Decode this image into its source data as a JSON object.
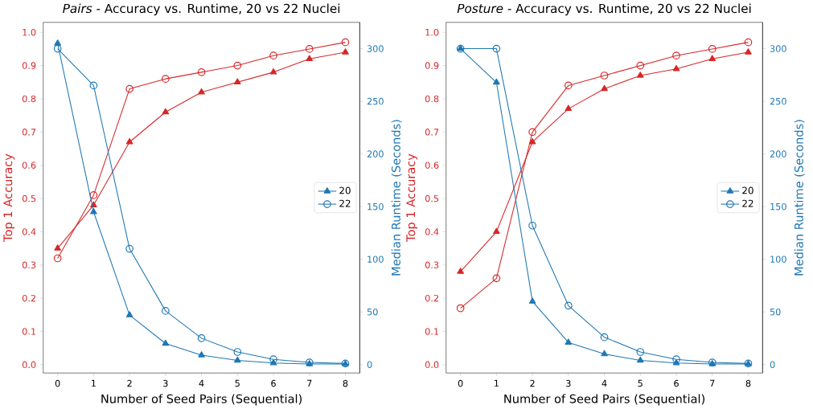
{
  "chart_data": [
    {
      "type": "line",
      "title": "*Pairs* - Accuracy vs. Runtime, 20 vs 22 Nuclei",
      "xlabel": "Number of Seed Pairs (Sequential)",
      "ylabel": "Top 1 Accuracy",
      "y2label": "Median Runtime (Seconds)",
      "legend": "right",
      "x": [
        0,
        1,
        2,
        3,
        4,
        5,
        6,
        7,
        8
      ],
      "xlim": [
        -0.4,
        8.4
      ],
      "xticks": [
        0,
        1,
        2,
        3,
        4,
        5,
        6,
        7,
        8
      ],
      "ylim": [
        -0.025,
        1.03
      ],
      "yticks": [
        {
          "value": 0,
          "label": "0.0"
        },
        {
          "value": 0.1,
          "label": "0.1"
        },
        {
          "value": 0.2,
          "label": "0.2"
        },
        {
          "value": 0.3,
          "label": "0.3"
        },
        {
          "value": 0.4,
          "label": "0.4"
        },
        {
          "value": 0.5,
          "label": "0.5"
        },
        {
          "value": 0.6,
          "label": "0.6"
        },
        {
          "value": 0.7,
          "label": "0.7"
        },
        {
          "value": 0.8,
          "label": "0.8"
        },
        {
          "value": 0.9,
          "label": "0.9"
        },
        {
          "value": 1,
          "label": "1.0"
        }
      ],
      "y2lim": [
        -8,
        325
      ],
      "y2ticks": [
        0,
        50,
        100,
        150,
        200,
        250,
        300
      ],
      "series": [
        {
          "color": "#d62728",
          "marker": "triangle",
          "values": [
            0.35,
            0.48,
            0.67,
            0.76,
            0.82,
            0.85,
            0.88,
            0.92,
            0.94
          ]
        },
        {
          "color": "#d62728",
          "marker": "circle",
          "values": [
            0.32,
            0.51,
            0.83,
            0.86,
            0.88,
            0.9,
            0.93,
            0.95,
            0.97
          ]
        },
        {
          "name": "20",
          "color": "#1f77b4",
          "marker": "triangle",
          "axis": "y2",
          "values": [
            305,
            145,
            47,
            20,
            9,
            4,
            1.5,
            0.6,
            0.6
          ]
        },
        {
          "name": "22",
          "color": "#1f77b4",
          "marker": "circle",
          "axis": "y2",
          "values": [
            300,
            265,
            110,
            51,
            25,
            12,
            5,
            2,
            1
          ]
        }
      ]
    },
    {
      "type": "line",
      "title": "*Posture* - Accuracy vs. Runtime, 20 vs 22 Nuclei",
      "xlabel": "Number of Seed Pairs (Sequential)",
      "ylabel": "Top 1 Accuracy",
      "y2label": "Median Runtime (Seconds)",
      "legend": "right",
      "x": [
        0,
        1,
        2,
        3,
        4,
        5,
        6,
        7,
        8
      ],
      "xlim": [
        -0.4,
        8.4
      ],
      "xticks": [
        0,
        1,
        2,
        3,
        4,
        5,
        6,
        7,
        8
      ],
      "ylim": [
        -0.025,
        1.03
      ],
      "yticks": [
        {
          "value": 0,
          "label": "0.0"
        },
        {
          "value": 0.1,
          "label": "0.1"
        },
        {
          "value": 0.2,
          "label": "0.2"
        },
        {
          "value": 0.3,
          "label": "0.3"
        },
        {
          "value": 0.4,
          "label": "0.4"
        },
        {
          "value": 0.5,
          "label": "0.5"
        },
        {
          "value": 0.6,
          "label": "0.6"
        },
        {
          "value": 0.7,
          "label": "0.7"
        },
        {
          "value": 0.8,
          "label": "0.8"
        },
        {
          "value": 0.9,
          "label": "0.9"
        },
        {
          "value": 1,
          "label": "1.0"
        }
      ],
      "y2lim": [
        -8,
        325
      ],
      "y2ticks": [
        0,
        50,
        100,
        150,
        200,
        250,
        300
      ],
      "series": [
        {
          "color": "#d62728",
          "marker": "triangle",
          "values": [
            0.28,
            0.4,
            0.67,
            0.77,
            0.83,
            0.87,
            0.89,
            0.92,
            0.94
          ]
        },
        {
          "color": "#d62728",
          "marker": "circle",
          "values": [
            0.17,
            0.26,
            0.7,
            0.84,
            0.87,
            0.9,
            0.93,
            0.95,
            0.97
          ]
        },
        {
          "name": "20",
          "color": "#1f77b4",
          "marker": "triangle",
          "axis": "y2",
          "values": [
            300,
            268,
            60,
            21,
            10,
            4,
            1.5,
            0.6,
            0.6
          ]
        },
        {
          "name": "22",
          "color": "#1f77b4",
          "marker": "circle",
          "axis": "y2",
          "values": [
            300,
            300,
            132,
            56,
            26,
            12,
            5,
            2,
            1
          ]
        }
      ]
    }
  ]
}
